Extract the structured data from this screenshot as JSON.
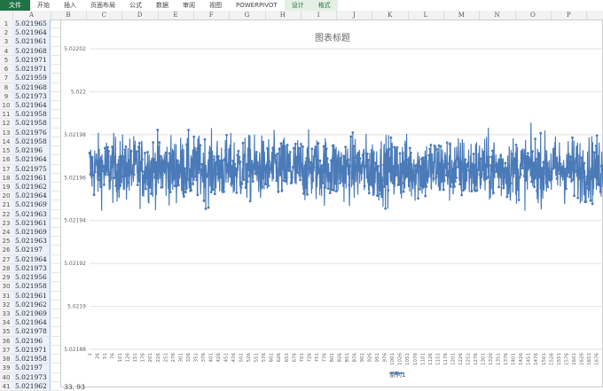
{
  "ribbon": {
    "tabs": [
      "文件",
      "开始",
      "插入",
      "页面布局",
      "公式",
      "数据",
      "审阅",
      "视图",
      "POWERPIVOT",
      "设计",
      "格式"
    ]
  },
  "columns": [
    "A",
    "B",
    "C",
    "D",
    "E",
    "F",
    "G",
    "H",
    "I",
    "J",
    "K",
    "L",
    "M",
    "N",
    "O",
    "P"
  ],
  "column_a": [
    "5.021965",
    "5.021964",
    "5.021961",
    "5.021968",
    "5.021971",
    "5.021971",
    "5.021959",
    "5.021968",
    "5.021973",
    "5.021964",
    "5.021958",
    "5.021958",
    "5.021976",
    "5.021958",
    "5.02196",
    "5.021964",
    "5.021975",
    "5.021961",
    "5.021962",
    "5.021964",
    "5.021969",
    "5.021963",
    "5.021961",
    "5.021969",
    "5.021963",
    "5.02197",
    "5.021964",
    "5.021973",
    "5.021956",
    "5.021958",
    "5.021961",
    "5.021962",
    "5.021969",
    "5.021964",
    "5.021978",
    "5.02196",
    "5.021971",
    "5.021958",
    "5.02197",
    "5.021973",
    "5.021962"
  ],
  "cell_b41": "33. 93",
  "chart_data": {
    "type": "line",
    "title": "图表标题",
    "series": [
      {
        "name": "系列1",
        "color": "#4a7ab8",
        "mean": 5.021964,
        "count": 1700
      }
    ],
    "ylim": [
      5.02188,
      5.02202
    ],
    "yticks": [
      "5.02202",
      "5.022",
      "5.02198",
      "5.02196",
      "5.02194",
      "5.02192",
      "5.0219",
      "5.02188"
    ],
    "xtick_start": 1,
    "xtick_step": 25,
    "grid": true,
    "legend": "bottom"
  }
}
